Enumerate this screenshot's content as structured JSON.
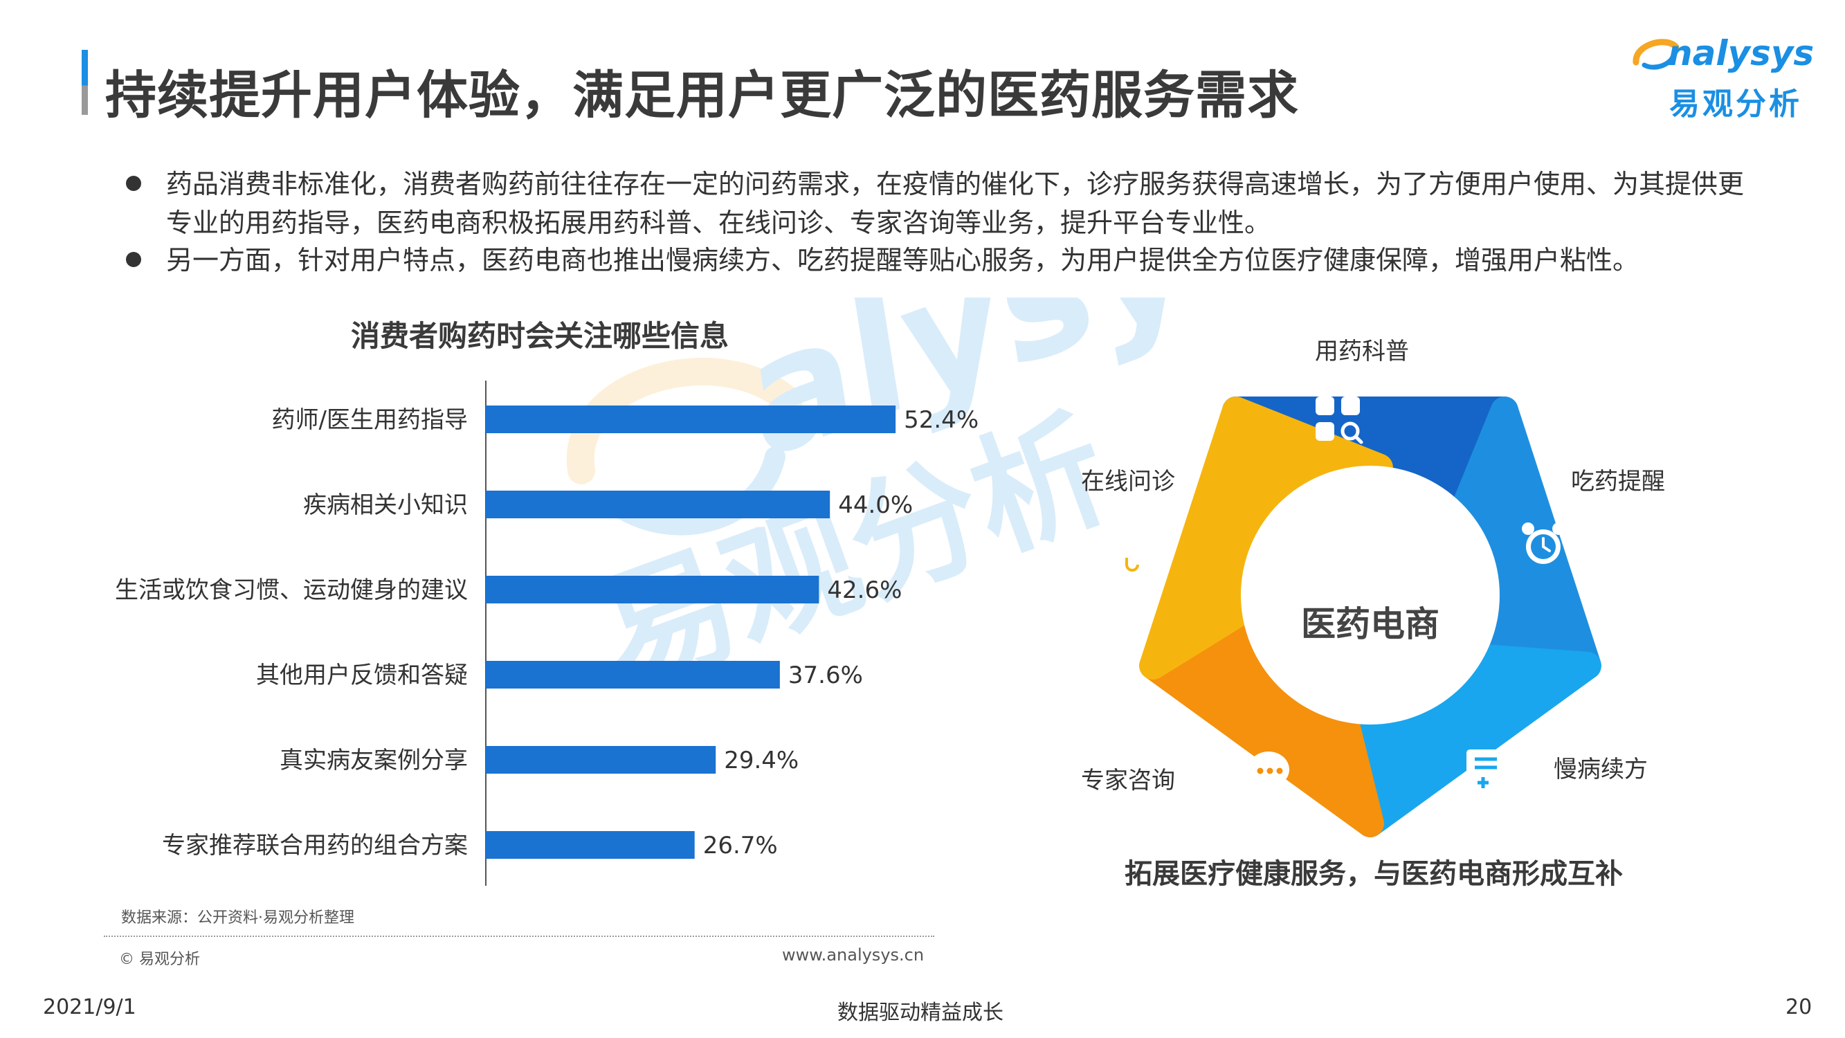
{
  "header": {
    "title": "持续提升用户体验，满足用户更广泛的医药服务需求",
    "logo_text": "nalysys",
    "logo_cn": "易观分析",
    "accent_color": "#1a8fe3"
  },
  "bullets": [
    "药品消费非标准化，消费者购药前往往存在一定的问药需求，在疫情的催化下，诊疗服务获得高速增长，为了方便用户使用、为其提供更专业的用药指导，医药电商积极拓展用药科普、在线问诊、专家咨询等业务，提升平台专业性。",
    "另一方面，针对用户特点，医药电商也推出慢病续方、吃药提醒等贴心服务，为用户提供全方位医疗健康保障，增强用户粘性。"
  ],
  "chart_data": {
    "type": "bar",
    "orientation": "horizontal",
    "title": "消费者购药时会关注哪些信息",
    "categories": [
      "药师/医生用药指导",
      "疾病相关小知识",
      "生活或饮食习惯、运动健身的建议",
      "其他用户反馈和答疑",
      "真实病友案例分享",
      "专家推荐联合用药的组合方案"
    ],
    "values": [
      52.4,
      44.0,
      42.6,
      37.6,
      29.4,
      26.7
    ],
    "value_labels": [
      "52.4%",
      "44.0%",
      "42.6%",
      "37.6%",
      "29.4%",
      "26.7%"
    ],
    "xlim": [
      0,
      100
    ],
    "bar_color": "#1a72d1",
    "grid": false
  },
  "source": {
    "text": "数据来源：公开资料·易观分析整理",
    "copyright": "© 易观分析",
    "website": "www.analysys.cn"
  },
  "ring": {
    "center": "医药电商",
    "caption": "拓展医疗健康服务，与医药电商形成互补",
    "segments": [
      {
        "label": "用药科普",
        "icon": "apps-search-icon",
        "color": "#1565c8"
      },
      {
        "label": "吃药提醒",
        "icon": "alarm-clock-icon",
        "color": "#1e8fe0"
      },
      {
        "label": "慢病续方",
        "icon": "prescription-icon",
        "color": "#19a6ee"
      },
      {
        "label": "专家咨询",
        "icon": "chat-bubbles-icon",
        "color": "#f5910d"
      },
      {
        "label": "在线问诊",
        "icon": "doctor-icon",
        "color": "#f6b50e"
      }
    ]
  },
  "footer": {
    "date": "2021/9/1",
    "slogan": "数据驱动精益成长",
    "page": "20"
  }
}
